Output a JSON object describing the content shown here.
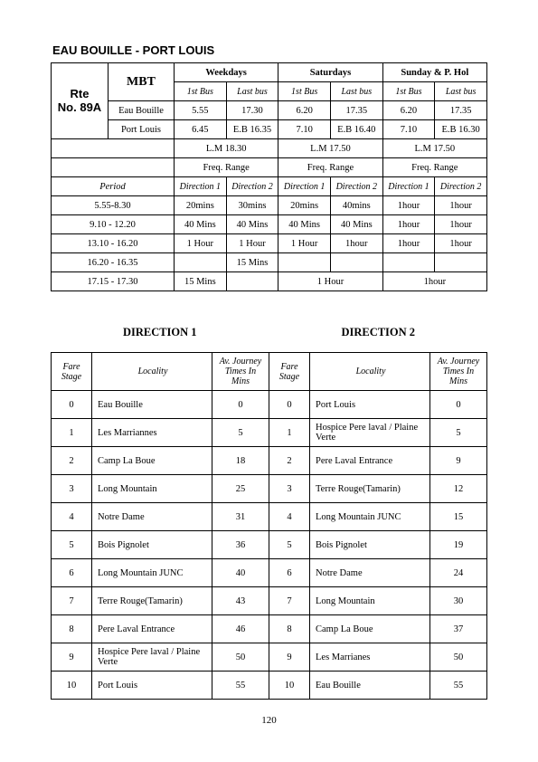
{
  "title": "EAU BOUILLE - PORT LOUIS",
  "page_number": "120",
  "schedule": {
    "mbt_label": "MBT",
    "route_label_line1": "Rte",
    "route_label_line2": "No. 89A",
    "day_headers": [
      "Weekdays",
      "Saturdays",
      "Sunday & P. Hol"
    ],
    "sub_headers": [
      "1st Bus",
      "Last bus"
    ],
    "origin_rows": [
      {
        "name": "Eau Bouille",
        "weekdays": [
          "5.55",
          "17.30"
        ],
        "saturdays": [
          "6.20",
          "17.35"
        ],
        "sunday": [
          "6.20",
          "17.35"
        ]
      },
      {
        "name": "Port Louis",
        "weekdays": [
          "6.45",
          "E.B 16.35"
        ],
        "saturdays": [
          "7.10",
          "E.B 16.40"
        ],
        "sunday": [
          "7.10",
          "E.B 16.30"
        ]
      }
    ],
    "lm_row": [
      "L.M 18.30",
      "L.M 17.50",
      "L.M 17.50"
    ],
    "freq_label": "Freq. Range",
    "period_label": "Period",
    "dir_labels": [
      "Direction 1",
      "Direction 2"
    ],
    "freq_rows": [
      {
        "period": "5.55-8.30",
        "weekdays": [
          "20mins",
          "30mins"
        ],
        "saturdays": [
          "20mins",
          "40mins"
        ],
        "sunday": [
          "1hour",
          "1hour"
        ]
      },
      {
        "period": "9.10 - 12.20",
        "weekdays": [
          "40 Mins",
          "40 Mins"
        ],
        "saturdays": [
          "40 Mins",
          "40 Mins"
        ],
        "sunday": [
          "1hour",
          "1hour"
        ]
      },
      {
        "period": "13.10 - 16.20",
        "weekdays": [
          "1 Hour",
          "1 Hour"
        ],
        "saturdays": [
          "1 Hour",
          "1hour"
        ],
        "sunday": [
          "1hour",
          "1hour"
        ]
      },
      {
        "period": "16.20 - 16.35",
        "weekdays": [
          "",
          "15 Mins"
        ],
        "saturdays": [
          "",
          ""
        ],
        "sunday": [
          "",
          ""
        ]
      }
    ],
    "last_row": {
      "period": "17.15 - 17.30",
      "weekdays_cell1": "15 Mins",
      "weekdays_cell2": "",
      "saturdays_merged": "1 Hour",
      "sunday_merged": "1hour"
    }
  },
  "directions": {
    "label1": "DIRECTION  1",
    "label2": "DIRECTION  2",
    "columns": [
      "Fare Stage",
      "Locality",
      "Av. Journey Times In Mins"
    ],
    "dir1": [
      [
        "0",
        "Eau Bouille",
        "0"
      ],
      [
        "1",
        "Les Marriannes",
        "5"
      ],
      [
        "2",
        "Camp La Boue",
        "18"
      ],
      [
        "3",
        "Long Mountain",
        "25"
      ],
      [
        "4",
        "Notre Dame",
        "31"
      ],
      [
        "5",
        "Bois Pignolet",
        "36"
      ],
      [
        "6",
        "Long Mountain JUNC",
        "40"
      ],
      [
        "7",
        "Terre Rouge(Tamarin)",
        "43"
      ],
      [
        "8",
        "Pere Laval Entrance",
        "46"
      ],
      [
        "9",
        "Hospice Pere laval / Plaine Verte",
        "50"
      ],
      [
        "10",
        "Port Louis",
        "55"
      ]
    ],
    "dir2": [
      [
        "0",
        "Port Louis",
        "0"
      ],
      [
        "1",
        "Hospice Pere laval / Plaine Verte",
        "5"
      ],
      [
        "2",
        "Pere Laval Entrance",
        "9"
      ],
      [
        "3",
        "Terre Rouge(Tamarin)",
        "12"
      ],
      [
        "4",
        "Long Mountain JUNC",
        "15"
      ],
      [
        "5",
        "Bois Pignolet",
        "19"
      ],
      [
        "6",
        "Notre Dame",
        "24"
      ],
      [
        "7",
        "Long Mountain",
        "30"
      ],
      [
        "8",
        "Camp La Boue",
        "37"
      ],
      [
        "9",
        "Les Marrianes",
        "50"
      ],
      [
        "10",
        "Eau Bouille",
        "55"
      ]
    ]
  }
}
